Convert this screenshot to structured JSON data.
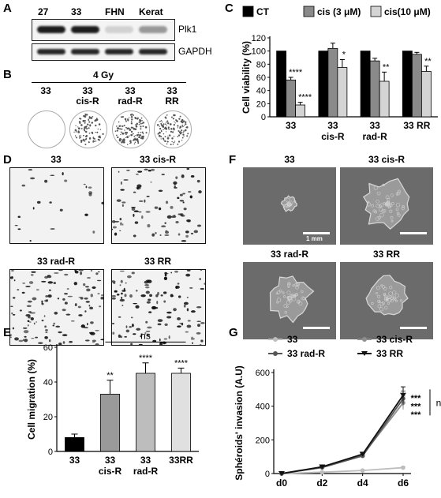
{
  "panels": {
    "A": {
      "letter": "A",
      "lanes": [
        "27",
        "33",
        "FHN",
        "Kerat"
      ],
      "bands": [
        {
          "label": "Plk1",
          "intensity": [
            0.95,
            0.95,
            0.15,
            0.4
          ]
        },
        {
          "label": "GAPDH",
          "intensity": [
            0.9,
            0.9,
            0.9,
            0.9
          ]
        }
      ]
    },
    "B": {
      "letter": "B",
      "treatment": "4 Gy",
      "lines": [
        "33",
        "33\ncis-R",
        "33\nrad-R",
        "33\nRR"
      ],
      "density": [
        0.0,
        0.45,
        0.6,
        0.5
      ]
    },
    "C": {
      "letter": "C",
      "legend": [
        "CT",
        "cis (3 μM)",
        "cis(10 μM)"
      ],
      "colors": [
        "#000000",
        "#8a8a8a",
        "#d4d4d4"
      ],
      "ylabel": "Cell viability (%)",
      "yticks": [
        "0",
        "20",
        "40",
        "60",
        "80",
        "100",
        "120"
      ]
    },
    "D": {
      "letter": "D",
      "titles": [
        "33",
        "33 cis-R",
        "33 rad-R",
        "33 RR"
      ],
      "density": [
        0.15,
        0.55,
        0.8,
        0.75
      ]
    },
    "E": {
      "letter": "E",
      "ylabel": "Cell migration (%)",
      "yticks": [
        "0",
        "20",
        "40",
        "60"
      ],
      "ns": "ns"
    },
    "F": {
      "letter": "F",
      "titles": [
        "33",
        "33 cis-R",
        "33 rad-R",
        "33 RR"
      ],
      "scalebar_label": "1 mm",
      "size": [
        0.25,
        0.8,
        0.7,
        0.65
      ]
    },
    "G": {
      "letter": "G",
      "ylabel": "Sphéroids' invasion (A.U)",
      "yticks": [
        "0",
        "200",
        "400",
        "600"
      ],
      "legend": [
        "33",
        "33 cis-R",
        "33 rad-R",
        "33 RR"
      ],
      "colors": [
        "#bdbdbd",
        "#8f8f8f",
        "#555555",
        "#111111"
      ],
      "stars": [
        "***",
        "***",
        "***"
      ],
      "ns": "ns"
    }
  },
  "chart_data": [
    {
      "type": "bar",
      "panel": "C",
      "categories": [
        "33",
        "33\ncis-R",
        "33\nrad-R",
        "33 RR"
      ],
      "series": [
        {
          "name": "CT",
          "values": [
            100,
            100,
            100,
            100
          ],
          "err": [
            0,
            0,
            0,
            0
          ]
        },
        {
          "name": "cis (3 μM)",
          "values": [
            56,
            104,
            85,
            95
          ],
          "err": [
            4,
            8,
            4,
            3
          ]
        },
        {
          "name": "cis(10 μM)",
          "values": [
            18,
            75,
            54,
            69
          ],
          "err": [
            4,
            12,
            14,
            8
          ]
        }
      ],
      "significance": [
        [
          "",
          "****",
          "****"
        ],
        [
          "",
          "",
          "*"
        ],
        [
          "",
          "",
          "**"
        ],
        [
          "",
          "",
          "**"
        ]
      ],
      "ylabel": "Cell viability (%)",
      "ylim": [
        0,
        120
      ]
    },
    {
      "type": "bar",
      "panel": "E",
      "categories": [
        "33",
        "33\ncis-R",
        "33\nrad-R",
        "33RR"
      ],
      "values": [
        8,
        33,
        45,
        45
      ],
      "err": [
        2,
        8,
        6,
        3
      ],
      "colors": [
        "#000000",
        "#9a9a9a",
        "#bdbdbd",
        "#e0e0e0"
      ],
      "significance": [
        "",
        "**",
        "****",
        "****"
      ],
      "ylabel": "Cell migration (%)",
      "ylim": [
        0,
        60
      ]
    },
    {
      "type": "line",
      "panel": "G",
      "x": [
        "d0",
        "d2",
        "d4",
        "d6"
      ],
      "series": [
        {
          "name": "33",
          "values": [
            0,
            8,
            18,
            35
          ],
          "err": [
            0,
            2,
            3,
            5
          ]
        },
        {
          "name": "33 cis-R",
          "values": [
            0,
            38,
            110,
            420
          ],
          "err": [
            0,
            5,
            12,
            40
          ]
        },
        {
          "name": "33 rad-R",
          "values": [
            0,
            36,
            105,
            445
          ],
          "err": [
            0,
            5,
            12,
            45
          ]
        },
        {
          "name": "33 RR",
          "values": [
            0,
            40,
            115,
            465
          ],
          "err": [
            0,
            5,
            12,
            50
          ]
        }
      ],
      "ylabel": "Sphéroids' invasion (A.U)",
      "ylim": [
        0,
        600
      ]
    }
  ]
}
